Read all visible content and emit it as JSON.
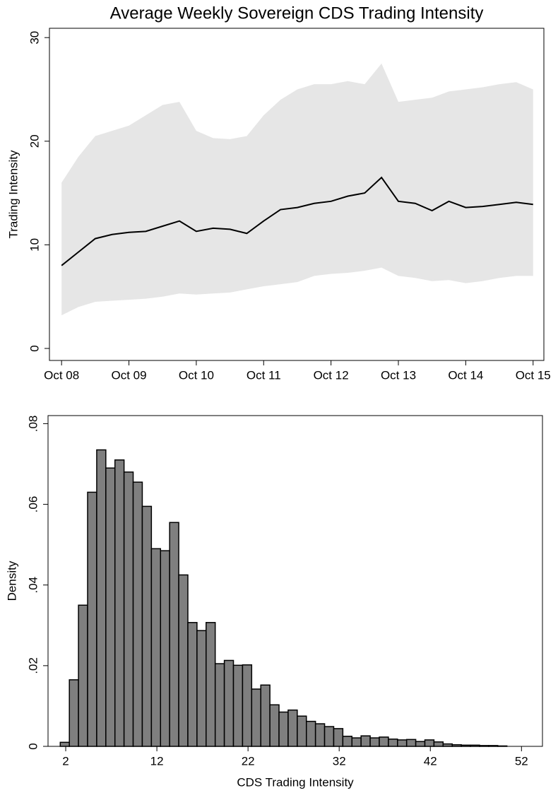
{
  "chart_data": [
    {
      "type": "band-line",
      "title": "Average Weekly Sovereign CDS Trading Intensity",
      "ylabel": "Trading Intensity",
      "x": [
        2008.75,
        2009.0,
        2009.25,
        2009.5,
        2009.75,
        2010.0,
        2010.25,
        2010.5,
        2010.75,
        2011.0,
        2011.25,
        2011.5,
        2011.75,
        2012.0,
        2012.25,
        2012.5,
        2012.75,
        2013.0,
        2013.25,
        2013.5,
        2013.75,
        2014.0,
        2014.25,
        2014.5,
        2014.75,
        2015.0,
        2015.25,
        2015.5,
        2015.75
      ],
      "values": [
        8.0,
        9.3,
        10.6,
        11.0,
        11.2,
        11.3,
        11.8,
        12.3,
        11.3,
        11.6,
        11.5,
        11.1,
        12.3,
        13.4,
        13.6,
        14.0,
        14.2,
        14.7,
        15.0,
        16.5,
        14.2,
        14.0,
        13.3,
        14.2,
        13.6,
        13.7,
        13.9,
        14.1,
        13.9
      ],
      "upper": [
        16,
        18.5,
        20.5,
        21,
        21.5,
        22.5,
        23.5,
        23.8,
        21.0,
        20.3,
        20.2,
        20.5,
        22.5,
        24,
        25,
        25.5,
        25.5,
        25.8,
        25.5,
        27.5,
        23.8,
        24,
        24.2,
        24.8,
        25,
        25.2,
        25.5,
        25.7,
        25
      ],
      "lower": [
        3.2,
        4.0,
        4.5,
        4.6,
        4.7,
        4.8,
        5.0,
        5.3,
        5.2,
        5.3,
        5.4,
        5.7,
        6.0,
        6.2,
        6.4,
        7.0,
        7.2,
        7.3,
        7.5,
        7.8,
        7.0,
        6.8,
        6.5,
        6.6,
        6.3,
        6.5,
        6.8,
        7.0,
        7.0
      ],
      "color": "#000000",
      "band_color": "#e6e6e6",
      "xlim": [
        2008.57,
        2015.91
      ],
      "ylim": [
        -1.16,
        30.9
      ],
      "xticks": [
        {
          "value": 2008.75,
          "label": "Oct 08"
        },
        {
          "value": 2009.75,
          "label": "Oct 09"
        },
        {
          "value": 2010.75,
          "label": "Oct 10"
        },
        {
          "value": 2011.75,
          "label": "Oct 11"
        },
        {
          "value": 2012.75,
          "label": "Oct 12"
        },
        {
          "value": 2013.75,
          "label": "Oct 13"
        },
        {
          "value": 2014.75,
          "label": "Oct 14"
        },
        {
          "value": 2015.75,
          "label": "Oct 15"
        }
      ],
      "yticks": [
        0,
        10,
        20,
        30
      ]
    },
    {
      "type": "histogram",
      "xlabel": "CDS Trading Intensity",
      "ylabel": "Density",
      "bins": [
        1.4,
        2.4,
        3.4,
        4.4,
        5.4,
        6.4,
        7.4,
        8.4,
        9.4,
        10.4,
        11.4,
        12.4,
        13.4,
        14.4,
        15.4,
        16.4,
        17.4,
        18.4,
        19.4,
        20.4,
        21.4,
        22.4,
        23.4,
        24.4,
        25.4,
        26.4,
        27.4,
        28.4,
        29.4,
        30.4,
        31.4,
        32.4,
        33.4,
        34.4,
        35.4,
        36.4,
        37.4,
        38.4,
        39.4,
        40.4,
        41.4,
        42.4,
        43.4,
        44.4,
        45.4,
        46.4,
        47.4,
        48.4,
        49.4,
        50.4
      ],
      "values": [
        0.001,
        0.0165,
        0.035,
        0.063,
        0.0735,
        0.069,
        0.071,
        0.068,
        0.0655,
        0.0595,
        0.049,
        0.0485,
        0.0555,
        0.0425,
        0.0307,
        0.0287,
        0.0307,
        0.0205,
        0.0213,
        0.0201,
        0.0202,
        0.0142,
        0.0152,
        0.0103,
        0.0085,
        0.009,
        0.0075,
        0.0062,
        0.0056,
        0.0049,
        0.0044,
        0.0025,
        0.0021,
        0.0026,
        0.0021,
        0.0023,
        0.0018,
        0.0016,
        0.0017,
        0.0012,
        0.0016,
        0.0011,
        0.0006,
        0.0004,
        0.0003,
        0.0003,
        0.0002,
        0.0002,
        0.0001
      ],
      "color": "#7f7f7f",
      "xlim": [
        0.06,
        54.3
      ],
      "ylim": [
        0,
        0.082
      ],
      "xticks": [
        2,
        12,
        22,
        32,
        42,
        52
      ],
      "yticks": [
        0,
        {
          "value": 0.02,
          "label": ".02"
        },
        {
          "value": 0.04,
          "label": ".04"
        },
        {
          "value": 0.06,
          "label": ".06"
        },
        {
          "value": 0.08,
          "label": ".08"
        }
      ]
    }
  ]
}
